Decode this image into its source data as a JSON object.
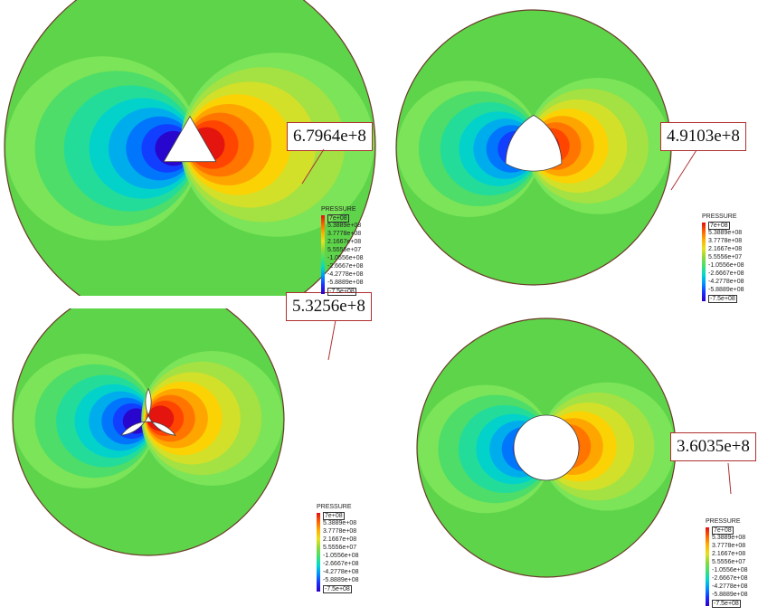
{
  "panels": [
    {
      "id": "triangle",
      "shape": "triangle",
      "peak_label": "6.7964e+8"
    },
    {
      "id": "rounded-triangle",
      "shape": "reuleaux",
      "peak_label": "4.9103e+8"
    },
    {
      "id": "concave-triangle",
      "shape": "concave",
      "peak_label": "5.3256e+8"
    },
    {
      "id": "circle",
      "shape": "circle",
      "peak_label": "3.6035e+8"
    }
  ],
  "legend": {
    "title": "PRESSURE",
    "labels": [
      "7e+08",
      "5.3889e+08",
      "3.7778e+08",
      "2.1667e+08",
      "5.5556e+07",
      "-1.0556e+08",
      "-2.6667e+08",
      "-4.2778e+08",
      "-5.8889e+08",
      "-7.5e+08"
    ]
  },
  "colors": {
    "scale": [
      "#2b00c8",
      "#1a30ff",
      "#0090ff",
      "#00d8d0",
      "#40e070",
      "#8cd83c",
      "#e8e020",
      "#ffb000",
      "#ff6000",
      "#e01010"
    ],
    "background_field": "#5dd44a",
    "outline": "#6b3a2a",
    "callout": "#b03030"
  }
}
